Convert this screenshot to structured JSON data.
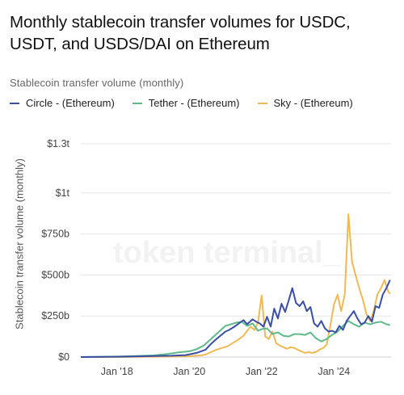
{
  "title": "Monthly stablecoin transfer volumes for USDC, USDT, and USDS/DAI on Ethereum",
  "subtitle": "Stablecoin transfer volume (monthly)",
  "watermark": "token terminal_",
  "colors": {
    "circle": "#3a4fa3",
    "tether": "#5fb98a",
    "sky": "#f0b955",
    "grid": "#e6e6e6"
  },
  "chart_data": {
    "type": "line",
    "ylabel": "Stablecoin transfer volume (monthly)",
    "ylim": [
      0,
      1300
    ],
    "y_unit": "billions USD",
    "yticks": [
      {
        "value": 0,
        "label": "$0"
      },
      {
        "value": 250,
        "label": "$250b"
      },
      {
        "value": 500,
        "label": "$500b"
      },
      {
        "value": 750,
        "label": "$750b"
      },
      {
        "value": 1000,
        "label": "$1t"
      },
      {
        "value": 1300,
        "label": "$1.3t"
      }
    ],
    "xlim": [
      2017.0,
      2025.58
    ],
    "xticks": [
      {
        "value": 2018,
        "label": "Jan '18"
      },
      {
        "value": 2020,
        "label": "Jan '20"
      },
      {
        "value": 2022,
        "label": "Jan '22"
      },
      {
        "value": 2024,
        "label": "Jan '24"
      }
    ],
    "grid": true,
    "legend_position": "top-left",
    "series": [
      {
        "name": "Circle - (Ethereum)",
        "color": "#3a4fa3",
        "x": [
          2017.0,
          2018.0,
          2018.5,
          2019.0,
          2019.5,
          2019.9,
          2020.2,
          2020.45,
          2020.6,
          2020.75,
          2021.0,
          2021.1,
          2021.25,
          2021.4,
          2021.5,
          2021.6,
          2021.75,
          2021.85,
          2021.95,
          2022.05,
          2022.15,
          2022.25,
          2022.35,
          2022.45,
          2022.55,
          2022.65,
          2022.75,
          2022.85,
          2022.95,
          2023.05,
          2023.15,
          2023.25,
          2023.35,
          2023.45,
          2023.55,
          2023.65,
          2023.75,
          2023.85,
          2023.95,
          2024.05,
          2024.15,
          2024.25,
          2024.35,
          2024.45,
          2024.55,
          2024.65,
          2024.75,
          2024.85,
          2024.95,
          2025.05,
          2025.15,
          2025.25,
          2025.35,
          2025.45,
          2025.55
        ],
        "y": [
          0,
          2,
          4,
          6,
          8,
          12,
          25,
          45,
          80,
          110,
          155,
          165,
          185,
          210,
          225,
          200,
          230,
          215,
          205,
          185,
          245,
          185,
          295,
          235,
          325,
          275,
          345,
          420,
          330,
          310,
          340,
          280,
          305,
          205,
          185,
          220,
          175,
          155,
          160,
          150,
          190,
          165,
          220,
          250,
          280,
          235,
          200,
          210,
          250,
          215,
          310,
          300,
          380,
          420,
          470
        ]
      },
      {
        "name": "Tether - (Ethereum)",
        "color": "#5fb98a",
        "x": [
          2017.0,
          2018.0,
          2018.5,
          2019.0,
          2019.4,
          2019.7,
          2020.0,
          2020.2,
          2020.4,
          2020.6,
          2020.8,
          2021.0,
          2021.15,
          2021.3,
          2021.45,
          2021.6,
          2021.75,
          2021.9,
          2022.0,
          2022.15,
          2022.3,
          2022.45,
          2022.6,
          2022.75,
          2022.9,
          2023.05,
          2023.2,
          2023.35,
          2023.5,
          2023.65,
          2023.8,
          2023.95,
          2024.1,
          2024.25,
          2024.4,
          2024.55,
          2024.7,
          2024.85,
          2025.0,
          2025.15,
          2025.3,
          2025.45,
          2025.55
        ],
        "y": [
          0,
          3,
          6,
          10,
          18,
          28,
          35,
          48,
          70,
          110,
          150,
          190,
          200,
          210,
          215,
          190,
          205,
          160,
          170,
          175,
          140,
          150,
          130,
          125,
          140,
          140,
          135,
          150,
          115,
          95,
          110,
          135,
          155,
          190,
          220,
          200,
          185,
          210,
          200,
          210,
          215,
          200,
          195
        ]
      },
      {
        "name": "Sky - (Ethereum)",
        "color": "#f0b955",
        "x": [
          2017.0,
          2018.0,
          2018.5,
          2019.0,
          2019.5,
          2020.0,
          2020.15,
          2020.3,
          2020.45,
          2020.6,
          2020.75,
          2020.9,
          2021.05,
          2021.2,
          2021.35,
          2021.5,
          2021.6,
          2021.7,
          2021.8,
          2021.9,
          2022.0,
          2022.1,
          2022.2,
          2022.3,
          2022.4,
          2022.5,
          2022.6,
          2022.7,
          2022.8,
          2022.9,
          2023.0,
          2023.1,
          2023.2,
          2023.3,
          2023.4,
          2023.5,
          2023.6,
          2023.7,
          2023.8,
          2023.9,
          2024.0,
          2024.1,
          2024.2,
          2024.3,
          2024.4,
          2024.5,
          2024.6,
          2024.7,
          2024.8,
          2024.9,
          2025.0,
          2025.1,
          2025.2,
          2025.3,
          2025.4,
          2025.5,
          2025.55
        ],
        "y": [
          0,
          0,
          1,
          2,
          3,
          5,
          8,
          10,
          15,
          30,
          45,
          55,
          65,
          85,
          105,
          130,
          160,
          185,
          165,
          210,
          375,
          125,
          110,
          155,
          85,
          70,
          60,
          50,
          60,
          55,
          45,
          35,
          25,
          30,
          25,
          30,
          45,
          55,
          75,
          190,
          320,
          380,
          280,
          380,
          870,
          580,
          500,
          420,
          350,
          260,
          220,
          280,
          380,
          420,
          470,
          400,
          385
        ]
      }
    ]
  }
}
